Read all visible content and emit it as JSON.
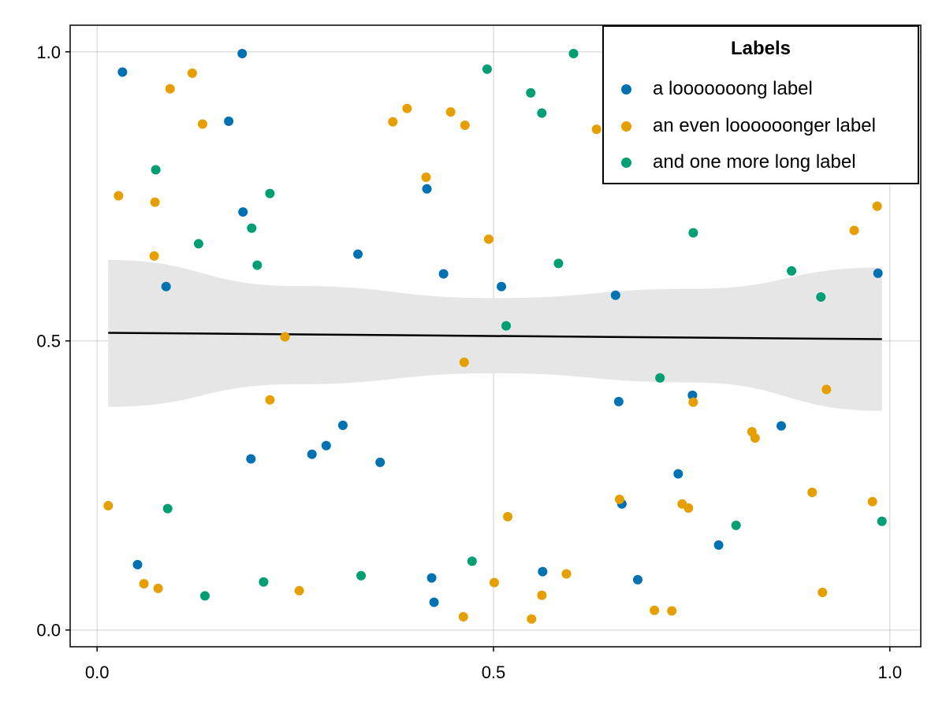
{
  "chart_data": {
    "type": "scatter",
    "title": "",
    "xlabel": "",
    "ylabel": "",
    "xlim": [
      -0.034,
      1.039
    ],
    "ylim": [
      -0.029,
      1.046
    ],
    "grid": true,
    "xticks": [
      0.0,
      0.5,
      1.0
    ],
    "yticks": [
      0.0,
      0.5,
      1.0
    ],
    "xtick_labels": [
      "0.0",
      "0.5",
      "1.0"
    ],
    "ytick_labels": [
      "0.0",
      "0.5",
      "1.0"
    ],
    "legend": {
      "title": "Labels",
      "placement": "top-right"
    },
    "series": [
      {
        "name": "a looooooong label",
        "color": "#0072b2",
        "points": [
          [
            0.032,
            0.965
          ],
          [
            0.183,
            0.997
          ],
          [
            0.166,
            0.88
          ],
          [
            0.184,
            0.723
          ],
          [
            0.087,
            0.594
          ],
          [
            0.329,
            0.65
          ],
          [
            0.416,
            0.763
          ],
          [
            0.437,
            0.616
          ],
          [
            0.51,
            0.594
          ],
          [
            0.654,
            0.579
          ],
          [
            0.658,
            0.395
          ],
          [
            0.751,
            0.406
          ],
          [
            0.31,
            0.354
          ],
          [
            0.289,
            0.319
          ],
          [
            0.271,
            0.304
          ],
          [
            0.194,
            0.296
          ],
          [
            0.357,
            0.29
          ],
          [
            0.863,
            0.353
          ],
          [
            0.733,
            0.27
          ],
          [
            0.662,
            0.218
          ],
          [
            0.784,
            0.147
          ],
          [
            0.051,
            0.113
          ],
          [
            0.562,
            0.101
          ],
          [
            0.682,
            0.087
          ],
          [
            0.422,
            0.09
          ],
          [
            0.425,
            0.048
          ],
          [
            0.985,
            0.617
          ]
        ]
      },
      {
        "name": "an even loooooonger label",
        "color": "#e69f00",
        "points": [
          [
            0.12,
            0.963
          ],
          [
            0.092,
            0.936
          ],
          [
            0.133,
            0.875
          ],
          [
            0.027,
            0.751
          ],
          [
            0.073,
            0.74
          ],
          [
            0.072,
            0.647
          ],
          [
            0.373,
            0.879
          ],
          [
            0.391,
            0.902
          ],
          [
            0.446,
            0.896
          ],
          [
            0.464,
            0.873
          ],
          [
            0.415,
            0.783
          ],
          [
            0.494,
            0.676
          ],
          [
            0.63,
            0.866
          ],
          [
            0.984,
            0.733
          ],
          [
            0.955,
            0.691
          ],
          [
            0.237,
            0.507
          ],
          [
            0.218,
            0.398
          ],
          [
            0.463,
            0.463
          ],
          [
            0.752,
            0.394
          ],
          [
            0.92,
            0.416
          ],
          [
            0.826,
            0.343
          ],
          [
            0.83,
            0.332
          ],
          [
            0.902,
            0.238
          ],
          [
            0.978,
            0.222
          ],
          [
            0.014,
            0.215
          ],
          [
            0.659,
            0.226
          ],
          [
            0.738,
            0.218
          ],
          [
            0.746,
            0.211
          ],
          [
            0.518,
            0.196
          ],
          [
            0.059,
            0.08
          ],
          [
            0.077,
            0.072
          ],
          [
            0.255,
            0.068
          ],
          [
            0.501,
            0.082
          ],
          [
            0.592,
            0.097
          ],
          [
            0.561,
            0.06
          ],
          [
            0.462,
            0.023
          ],
          [
            0.703,
            0.034
          ],
          [
            0.725,
            0.033
          ],
          [
            0.548,
            0.019
          ],
          [
            0.915,
            0.065
          ]
        ]
      },
      {
        "name": "and one more long label",
        "color": "#009e73",
        "points": [
          [
            0.601,
            0.997
          ],
          [
            0.492,
            0.97
          ],
          [
            0.547,
            0.929
          ],
          [
            0.561,
            0.894
          ],
          [
            0.074,
            0.796
          ],
          [
            0.218,
            0.755
          ],
          [
            0.128,
            0.668
          ],
          [
            0.195,
            0.695
          ],
          [
            0.202,
            0.631
          ],
          [
            0.582,
            0.634
          ],
          [
            0.752,
            0.687
          ],
          [
            0.876,
            0.621
          ],
          [
            0.913,
            0.576
          ],
          [
            0.516,
            0.526
          ],
          [
            0.71,
            0.436
          ],
          [
            0.089,
            0.21
          ],
          [
            0.806,
            0.181
          ],
          [
            0.99,
            0.188
          ],
          [
            0.473,
            0.119
          ],
          [
            0.333,
            0.094
          ],
          [
            0.21,
            0.083
          ],
          [
            0.136,
            0.059
          ]
        ]
      }
    ],
    "fit_line": {
      "color": "#000000",
      "x": [
        0.014,
        0.99
      ],
      "y": [
        0.514,
        0.503
      ]
    },
    "confidence_band": {
      "color": "#e6e6e6",
      "x": [
        0.014,
        0.25,
        0.5,
        0.75,
        0.99
      ],
      "upper": [
        0.64,
        0.595,
        0.574,
        0.59,
        0.627
      ],
      "lower": [
        0.386,
        0.425,
        0.444,
        0.428,
        0.379
      ]
    }
  }
}
